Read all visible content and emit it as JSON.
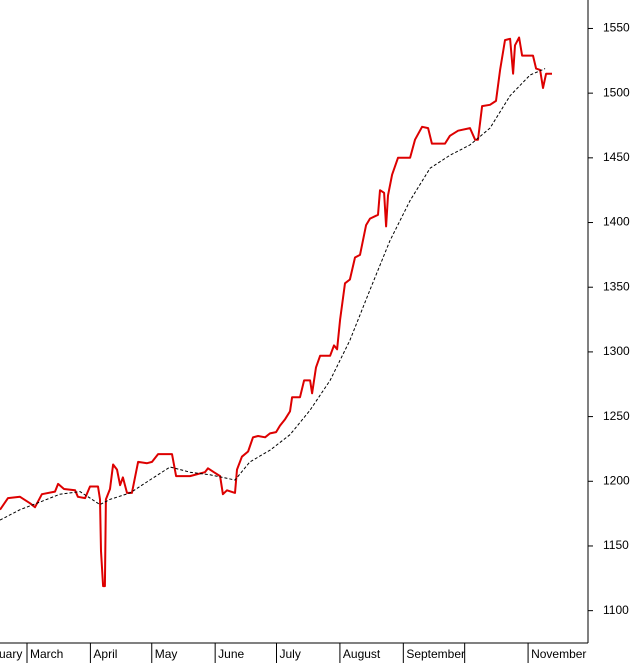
{
  "chart_data": {
    "type": "line",
    "xlim": [
      -13.2,
      274.3
    ],
    "ylim": [
      1075,
      1572
    ],
    "yticks": [
      1100,
      1150,
      1200,
      1250,
      1300,
      1350,
      1400,
      1450,
      1500,
      1550
    ],
    "xticks": [
      {
        "value": -28,
        "label": "uary"
      },
      {
        "value": 0,
        "label": "March"
      },
      {
        "value": 31,
        "label": "April"
      },
      {
        "value": 61,
        "label": "May"
      },
      {
        "value": 92,
        "label": "June"
      },
      {
        "value": 122,
        "label": "July"
      },
      {
        "value": 153,
        "label": "August"
      },
      {
        "value": 184,
        "label": "September"
      },
      {
        "value": 214,
        "label": null
      },
      {
        "value": 245,
        "label": "November"
      }
    ],
    "grid": false,
    "series": [
      {
        "color": "#dd0000",
        "dash": false,
        "x": [
          -13.2,
          -9.3,
          -3.4,
          1.5,
          3.9,
          7.3,
          13.7,
          15.2,
          18.1,
          23.5,
          24.9,
          28.4,
          30.8,
          34.7,
          35.7,
          36.2,
          37.2,
          38.1,
          38.6,
          40.6,
          42.1,
          44.0,
          45.5,
          46.9,
          48.9,
          51.3,
          54.3,
          58.7,
          61.1,
          64.1,
          70.9,
          72.9,
          79.7,
          87.0,
          88.5,
          91.4,
          94.4,
          95.8,
          97.8,
          101.7,
          102.7,
          105.1,
          108.1,
          110.5,
          113.0,
          116.4,
          118.8,
          121.8,
          123.7,
          126.2,
          128.6,
          129.6,
          133.5,
          135.5,
          138.4,
          139.4,
          141.3,
          143.3,
          148.2,
          150.1,
          151.6,
          153.1,
          155.5,
          157.9,
          160.4,
          162.8,
          165.8,
          167.7,
          171.6,
          172.6,
          174.6,
          175.6,
          176.5,
          178.5,
          181.4,
          187.3,
          189.7,
          193.2,
          196.1,
          198.0,
          204.4,
          206.8,
          210.8,
          216.6,
          219.1,
          220.5,
          222.5,
          226.4,
          229.3,
          231.3,
          233.7,
          236.2,
          237.7,
          238.6,
          240.6,
          242.1,
          247.4,
          248.9,
          250.9,
          252.3,
          253.8,
          256.7
        ],
        "values": [
          1178,
          1187,
          1188,
          1183,
          1180,
          1190,
          1192,
          1198,
          1194,
          1193,
          1188,
          1187,
          1196,
          1196,
          1186,
          1146,
          1119,
          1119,
          1186,
          1194,
          1213,
          1209,
          1197,
          1203,
          1191,
          1191,
          1215,
          1214,
          1215,
          1221,
          1221,
          1204,
          1204,
          1207,
          1210,
          1207,
          1204,
          1190,
          1193,
          1191,
          1209,
          1219,
          1223,
          1234,
          1235,
          1234,
          1237,
          1238,
          1243,
          1248,
          1254,
          1265,
          1265,
          1278,
          1278,
          1268,
          1288,
          1297,
          1297,
          1305,
          1302,
          1325,
          1353,
          1356,
          1373,
          1375,
          1398,
          1403,
          1406,
          1425,
          1423,
          1397,
          1421,
          1437,
          1450,
          1450,
          1464,
          1474,
          1473,
          1461,
          1461,
          1467,
          1471,
          1473,
          1464,
          1464,
          1490,
          1491,
          1494,
          1518,
          1541,
          1542,
          1515,
          1537,
          1543,
          1529,
          1529,
          1519,
          1518,
          1504,
          1515,
          1515
        ]
      },
      {
        "color": "#000000",
        "dash": true,
        "x": [
          -13.2,
          -3.4,
          6.4,
          16.1,
          25.9,
          35.7,
          40.6,
          50.4,
          60.1,
          69.9,
          79.7,
          89.5,
          101.7,
          109,
          118.8,
          128.6,
          138.4,
          148.2,
          157.9,
          167.7,
          177.5,
          187.3,
          197.1,
          206.8,
          216.6,
          226.4,
          236.2,
          246,
          253.3
        ],
        "values": [
          1170,
          1178,
          1184,
          1190,
          1192,
          1182,
          1186,
          1191,
          1201,
          1211,
          1207,
          1205,
          1201,
          1215,
          1224,
          1236,
          1255,
          1278,
          1309,
          1348,
          1386,
          1417,
          1442,
          1452,
          1460,
          1473,
          1498,
          1514,
          1519
        ]
      }
    ]
  }
}
